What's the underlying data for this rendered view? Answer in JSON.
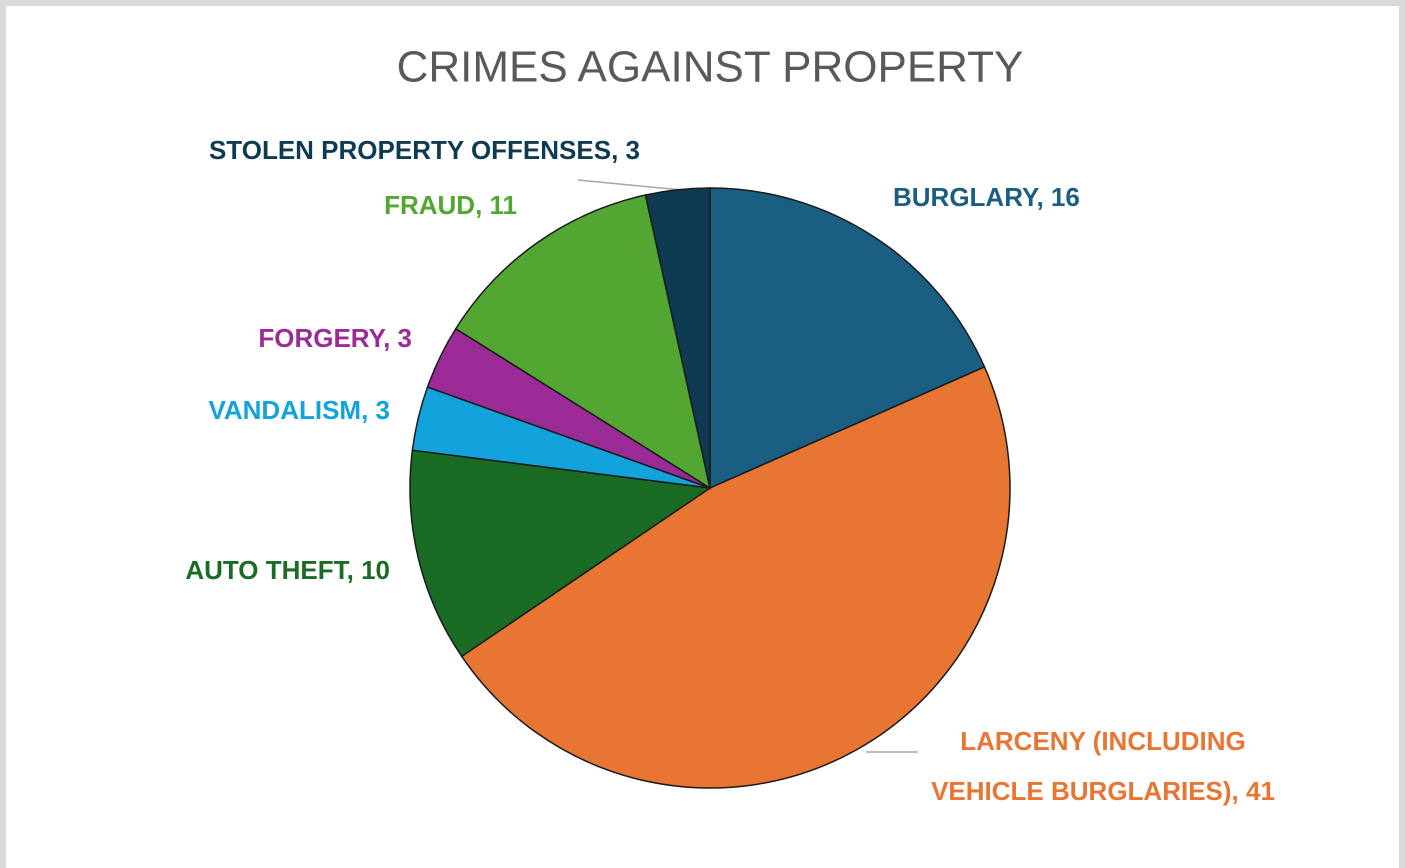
{
  "chart_data": {
    "type": "pie",
    "title": "CRIMES AGAINST PROPERTY",
    "values": [
      16,
      41,
      10,
      3,
      3,
      11,
      3
    ],
    "value_labels": [
      "BURGLARY, 16",
      "LARCENY (INCLUDING VEHICLE BURGLARIES), 41",
      "AUTO THEFT, 10",
      "VANDALISM, 3",
      "FORGERY, 3",
      "FRAUD, 11",
      "STOLEN PROPERTY OFFENSES, 3"
    ],
    "colors": [
      "#1a5e82",
      "#e87532",
      "#1a6b24",
      "#12a3dc",
      "#9b2b96",
      "#52a632",
      "#0e3a52"
    ]
  }
}
